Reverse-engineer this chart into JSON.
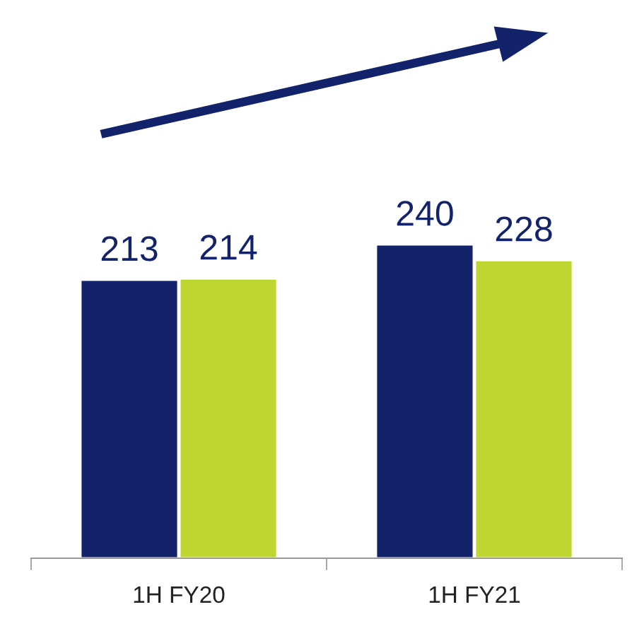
{
  "chart_data": {
    "type": "bar",
    "categories": [
      "1H FY20",
      "1H FY21"
    ],
    "series": [
      {
        "color": "#13236b",
        "values": [
          213,
          240
        ]
      },
      {
        "color": "#bed62f",
        "values": [
          214,
          228
        ]
      }
    ],
    "data_labels": true,
    "grid": false,
    "legend": false
  }
}
